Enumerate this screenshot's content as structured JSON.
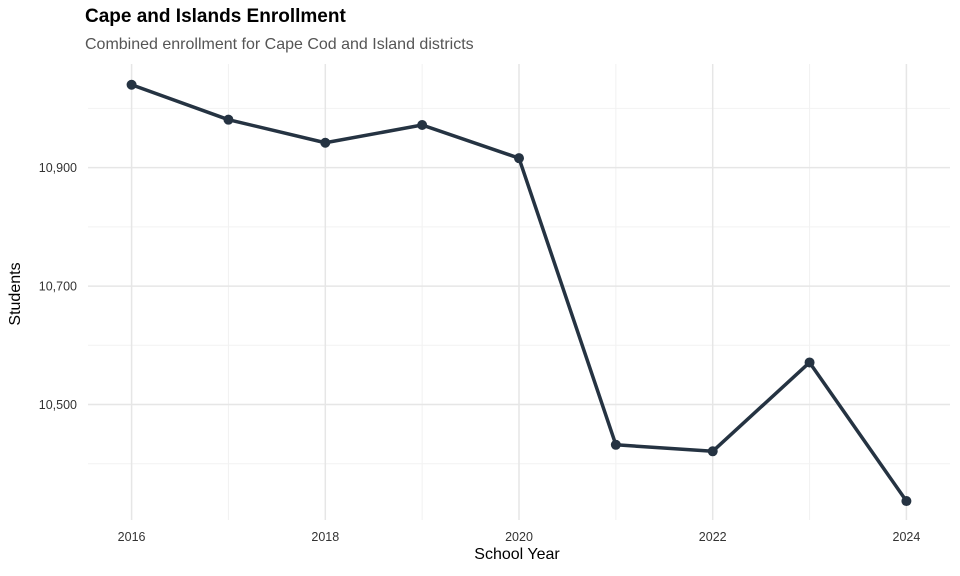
{
  "chart_data": {
    "type": "line",
    "title": "Cape and Islands Enrollment",
    "subtitle": "Combined enrollment for Cape Cod and Island districts",
    "xlabel": "School Year",
    "ylabel": "Students",
    "x": [
      2016,
      2017,
      2018,
      2019,
      2020,
      2021,
      2022,
      2023,
      2024
    ],
    "series": [
      {
        "values": [
          11040,
          10981,
          10942,
          10972,
          10916,
          10432,
          10421,
          10571,
          10337
        ]
      }
    ],
    "xticks": [
      2016,
      2018,
      2020,
      2022,
      2024
    ],
    "xtick_labels": [
      "2016",
      "2018",
      "2020",
      "2022",
      "2024"
    ],
    "yticks": [
      10500,
      10700,
      10900
    ],
    "ytick_labels": [
      "10,500",
      "10,700",
      "10,900"
    ],
    "xlim": [
      2015.55,
      2024.45
    ],
    "ylim": [
      10305,
      11075
    ],
    "grid": true,
    "line_color": "#253342"
  }
}
